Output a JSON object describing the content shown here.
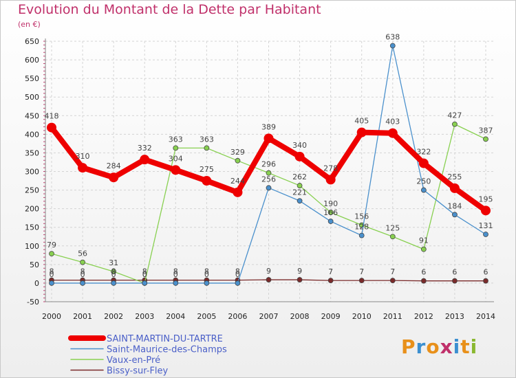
{
  "header": {
    "title": "Evolution du Montant de la Dette par Habitant",
    "unit": "(en €)"
  },
  "logo": {
    "text": "Proxiti",
    "colors": [
      "#e8901a",
      "#3b8fd0",
      "#e8901a",
      "#c0306a",
      "#3b8fd0",
      "#e8901a",
      "#8ab830"
    ]
  },
  "chart_data": {
    "type": "line",
    "x": [
      2000,
      2001,
      2002,
      2003,
      2004,
      2005,
      2006,
      2007,
      2008,
      2009,
      2010,
      2011,
      2012,
      2013,
      2014
    ],
    "ylim": [
      -50,
      650
    ],
    "yticks": [
      -50,
      0,
      50,
      100,
      150,
      200,
      250,
      300,
      350,
      400,
      450,
      500,
      550,
      600,
      650
    ],
    "grid": true,
    "legend": "bottom-left",
    "series": [
      {
        "name": "Bissy-sur-Fley",
        "color": "#7a2a2a",
        "width": 1.3,
        "values": [
          8,
          8,
          8,
          8,
          8,
          8,
          8,
          9,
          9,
          7,
          7,
          7,
          6,
          6,
          6
        ]
      },
      {
        "name": "Vaux-en-Pré",
        "color": "#88d050",
        "width": 1.3,
        "values": [
          79,
          56,
          31,
          0,
          363,
          363,
          329,
          296,
          262,
          190,
          156,
          125,
          91,
          427,
          387
        ]
      },
      {
        "name": "Saint-Maurice-des-Champs",
        "color": "#4a90cc",
        "width": 1.3,
        "values": [
          0,
          0,
          0,
          0,
          0,
          0,
          0,
          256,
          221,
          166,
          128,
          638,
          250,
          184,
          131
        ]
      },
      {
        "name": "SAINT-MARTIN-DU-TARTRE",
        "color": "#ee0000",
        "width": 8,
        "values": [
          418,
          310,
          284,
          332,
          304,
          275,
          244,
          389,
          340,
          278,
          405,
          403,
          322,
          255,
          195
        ]
      }
    ]
  }
}
